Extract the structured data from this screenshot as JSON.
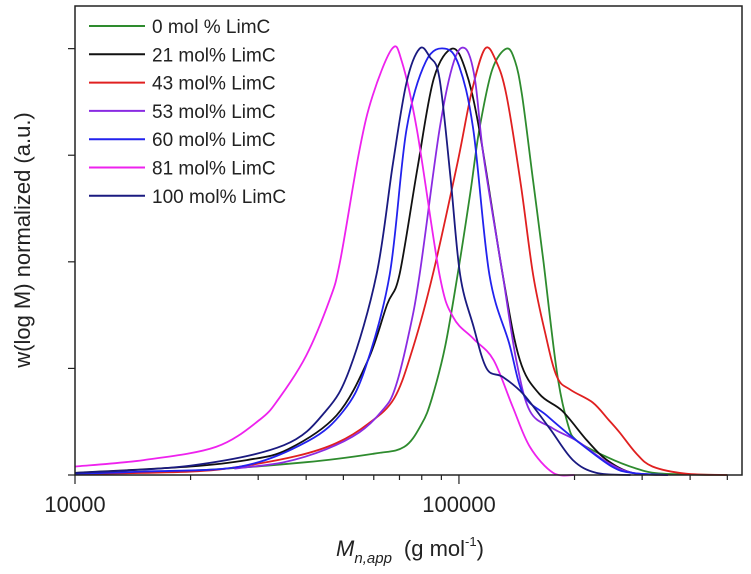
{
  "chart_data": {
    "type": "line",
    "title": "",
    "xlabel": {
      "main": "M",
      "subscript": "n,app",
      "unit_open": "(g mol",
      "unit_sup": "-1",
      "unit_close": ")"
    },
    "ylabel": "w(log M) normalized (a.u.)",
    "xscale": "log",
    "xlim": [
      10000,
      546000
    ],
    "ylim": [
      0,
      1.1
    ],
    "xticks": [
      10000,
      100000
    ],
    "xtick_labels": [
      "10000",
      "100000"
    ],
    "yticks": [
      0,
      0.25,
      0.5,
      0.75,
      1.0
    ],
    "ytick_labels_shown": false,
    "grid": false,
    "legend_position": "top-left",
    "series": [
      {
        "name": "0 mol % LimC",
        "color": "#2e8b2e",
        "points": [
          [
            10000,
            0.003
          ],
          [
            20000,
            0.01
          ],
          [
            40000,
            0.03
          ],
          [
            60000,
            0.05
          ],
          [
            72000,
            0.066
          ],
          [
            80000,
            0.12
          ],
          [
            85000,
            0.18
          ],
          [
            92000,
            0.3
          ],
          [
            100000,
            0.49
          ],
          [
            107000,
            0.66
          ],
          [
            113000,
            0.81
          ],
          [
            122000,
            0.95
          ],
          [
            133000,
            1.0
          ],
          [
            140000,
            0.97
          ],
          [
            146000,
            0.89
          ],
          [
            156000,
            0.69
          ],
          [
            166000,
            0.5
          ],
          [
            180000,
            0.24
          ],
          [
            192000,
            0.12
          ],
          [
            203000,
            0.08
          ],
          [
            243000,
            0.042
          ],
          [
            290000,
            0.015
          ],
          [
            340000,
            0.003
          ],
          [
            500000,
            0
          ]
        ]
      },
      {
        "name": "21 mol% LimC",
        "color": "#111111",
        "points": [
          [
            10000,
            0.005
          ],
          [
            20000,
            0.02
          ],
          [
            28000,
            0.035
          ],
          [
            35800,
            0.06
          ],
          [
            48000,
            0.14
          ],
          [
            58000,
            0.27
          ],
          [
            65000,
            0.4
          ],
          [
            70000,
            0.47
          ],
          [
            78000,
            0.72
          ],
          [
            86000,
            0.93
          ],
          [
            96000,
            1.0
          ],
          [
            104000,
            0.95
          ],
          [
            113000,
            0.81
          ],
          [
            130000,
            0.47
          ],
          [
            144000,
            0.27
          ],
          [
            162000,
            0.19
          ],
          [
            186000,
            0.15
          ],
          [
            216000,
            0.08
          ],
          [
            243000,
            0.035
          ],
          [
            283000,
            0.005
          ],
          [
            350000,
            0
          ]
        ]
      },
      {
        "name": "43 mol% LimC",
        "color": "#e02020",
        "points": [
          [
            10000,
            0.002
          ],
          [
            20000,
            0.008
          ],
          [
            27000,
            0.02
          ],
          [
            38000,
            0.045
          ],
          [
            48000,
            0.075
          ],
          [
            58000,
            0.12
          ],
          [
            67800,
            0.18
          ],
          [
            76000,
            0.3
          ],
          [
            85500,
            0.47
          ],
          [
            99000,
            0.73
          ],
          [
            108000,
            0.9
          ],
          [
            117000,
            1.0
          ],
          [
            125000,
            0.97
          ],
          [
            133000,
            0.89
          ],
          [
            145000,
            0.68
          ],
          [
            156000,
            0.47
          ],
          [
            168000,
            0.33
          ],
          [
            180000,
            0.23
          ],
          [
            195000,
            0.2
          ],
          [
            223000,
            0.17
          ],
          [
            245000,
            0.13
          ],
          [
            262000,
            0.1
          ],
          [
            290000,
            0.05
          ],
          [
            319000,
            0.02
          ],
          [
            390000,
            0.003
          ],
          [
            500000,
            0
          ]
        ]
      },
      {
        "name": "53 mol% LimC",
        "color": "#8a2be2",
        "points": [
          [
            26000,
            0.015
          ],
          [
            35000,
            0.03
          ],
          [
            45000,
            0.06
          ],
          [
            55000,
            0.1
          ],
          [
            63000,
            0.15
          ],
          [
            68000,
            0.2
          ],
          [
            74000,
            0.33
          ],
          [
            79000,
            0.47
          ],
          [
            89000,
            0.81
          ],
          [
            97000,
            0.97
          ],
          [
            104000,
            1.0
          ],
          [
            110000,
            0.93
          ],
          [
            115000,
            0.77
          ],
          [
            122000,
            0.62
          ],
          [
            130000,
            0.47
          ],
          [
            141000,
            0.27
          ],
          [
            153000,
            0.15
          ],
          [
            175000,
            0.11
          ],
          [
            203000,
            0.08
          ],
          [
            243000,
            0.03
          ],
          [
            283000,
            0.005
          ],
          [
            350000,
            0
          ]
        ]
      },
      {
        "name": "60 mol% LimC",
        "color": "#2222ee",
        "points": [
          [
            10000,
            0.003
          ],
          [
            15000,
            0.008
          ],
          [
            27000,
            0.02
          ],
          [
            40500,
            0.08
          ],
          [
            50000,
            0.15
          ],
          [
            57000,
            0.25
          ],
          [
            66000,
            0.47
          ],
          [
            73000,
            0.81
          ],
          [
            82000,
            0.97
          ],
          [
            92000,
            1.0
          ],
          [
            100000,
            0.96
          ],
          [
            109000,
            0.81
          ],
          [
            120000,
            0.47
          ],
          [
            135000,
            0.31
          ],
          [
            147000,
            0.19
          ],
          [
            169000,
            0.14
          ],
          [
            203000,
            0.08
          ],
          [
            250000,
            0.02
          ],
          [
            283000,
            0.005
          ],
          [
            350000,
            0
          ]
        ]
      },
      {
        "name": "81 mol% LimC",
        "color": "#ee22ee",
        "points": [
          [
            10000,
            0.02
          ],
          [
            15100,
            0.035
          ],
          [
            23300,
            0.066
          ],
          [
            30300,
            0.13
          ],
          [
            34000,
            0.18
          ],
          [
            40000,
            0.28
          ],
          [
            46000,
            0.41
          ],
          [
            49000,
            0.5
          ],
          [
            55000,
            0.76
          ],
          [
            59600,
            0.89
          ],
          [
            67000,
            1.0
          ],
          [
            71000,
            0.97
          ],
          [
            77700,
            0.81
          ],
          [
            89000,
            0.47
          ],
          [
            96600,
            0.37
          ],
          [
            109000,
            0.32
          ],
          [
            123000,
            0.27
          ],
          [
            138000,
            0.16
          ],
          [
            153000,
            0.066
          ],
          [
            176000,
            0.005
          ],
          [
            200000,
            0
          ]
        ]
      },
      {
        "name": "100 mol% LimC",
        "color": "#1a1a80",
        "points": [
          [
            10000,
            0.005
          ],
          [
            20000,
            0.022
          ],
          [
            35000,
            0.07
          ],
          [
            45000,
            0.15
          ],
          [
            52000,
            0.25
          ],
          [
            61000,
            0.47
          ],
          [
            67300,
            0.73
          ],
          [
            73000,
            0.92
          ],
          [
            79000,
            1.0
          ],
          [
            84000,
            0.98
          ],
          [
            89000,
            0.93
          ],
          [
            95000,
            0.7
          ],
          [
            100700,
            0.47
          ],
          [
            109000,
            0.35
          ],
          [
            118000,
            0.25
          ],
          [
            130000,
            0.23
          ],
          [
            147000,
            0.19
          ],
          [
            172000,
            0.11
          ],
          [
            198000,
            0.035
          ],
          [
            228000,
            0.005
          ],
          [
            280000,
            0
          ]
        ]
      }
    ]
  }
}
